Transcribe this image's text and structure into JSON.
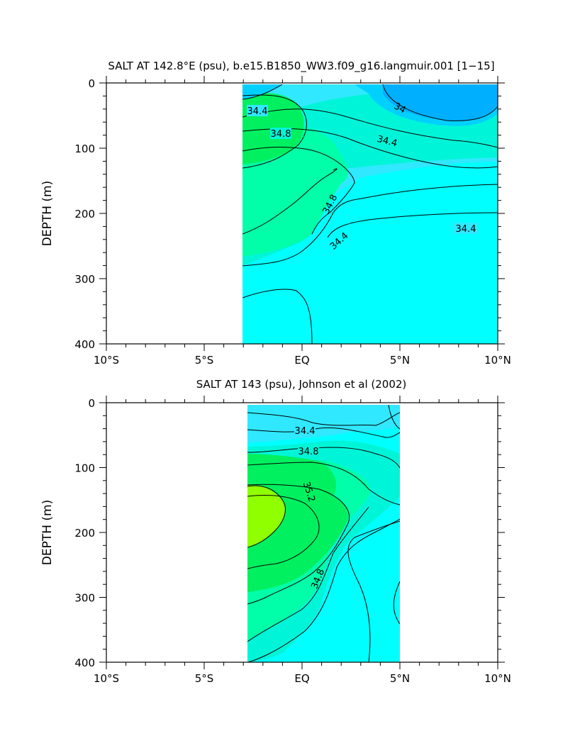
{
  "chart_data": [
    {
      "type": "heatmap",
      "title": "SALT AT 142.8°E (psu), b.e15.B1850_WW3.f09_g16.langmuir.001 [1−15]",
      "ylabel": "DEPTH (m)",
      "xlabel": "",
      "xlim": [
        -10,
        10
      ],
      "ylim": [
        400,
        0
      ],
      "x_ticks": [
        -10,
        -5,
        0,
        5,
        10
      ],
      "x_tick_labels": [
        "10°S",
        "5°S",
        "EQ",
        "5°N",
        "10°N"
      ],
      "y_ticks": [
        0,
        100,
        200,
        300,
        400
      ],
      "y_tick_labels": [
        "0",
        "100",
        "200",
        "300",
        "400"
      ],
      "data_extent_lat": [
        -3.3,
        10
      ],
      "data_extent_depth": [
        5,
        400
      ],
      "contour_levels": [
        34.0,
        34.2,
        34.4,
        34.6,
        34.8,
        35.0,
        35.2
      ],
      "contour_labels": [
        {
          "text": "34.4",
          "lat": -2.3,
          "depth": 43,
          "angle": 0
        },
        {
          "text": "34.8",
          "lat": -1.7,
          "depth": 76,
          "angle": 0
        },
        {
          "text": "34",
          "lat": 4.9,
          "depth": 40,
          "angle": 28
        },
        {
          "text": "34.4",
          "lat": 4.2,
          "depth": 92,
          "angle": 14
        },
        {
          "text": "34.8",
          "lat": 1.1,
          "depth": 192,
          "angle": -62
        },
        {
          "text": "34.4",
          "lat": 1.3,
          "depth": 260,
          "angle": -42
        },
        {
          "text": "34.4",
          "lat": 8.4,
          "depth": 222,
          "angle": 0
        }
      ],
      "fill_colors": [
        "#00b0ff",
        "#00d0ff",
        "#30e8ff",
        "#00ffff",
        "#00f5d8",
        "#00ffa8",
        "#00f060",
        "#90ff00"
      ]
    },
    {
      "type": "heatmap",
      "title": "SALT AT 143 (psu), Johnson et al (2002)",
      "ylabel": "DEPTH (m)",
      "xlabel": "",
      "xlim": [
        -10,
        10
      ],
      "ylim": [
        400,
        0
      ],
      "x_ticks": [
        -10,
        -5,
        0,
        5,
        10
      ],
      "x_tick_labels": [
        "10°S",
        "5°S",
        "EQ",
        "5°N",
        "10°N"
      ],
      "y_ticks": [
        0,
        100,
        200,
        300,
        400
      ],
      "y_tick_labels": [
        "0",
        "100",
        "200",
        "300",
        "400"
      ],
      "data_extent_lat": [
        -2.9,
        5
      ],
      "data_extent_depth": [
        5,
        400
      ],
      "contour_levels": [
        34.2,
        34.4,
        34.6,
        34.8,
        35.0,
        35.2,
        35.4
      ],
      "contour_labels": [
        {
          "text": "34.4",
          "lat": -0.9,
          "depth": 41,
          "angle": 0
        },
        {
          "text": "34.8",
          "lat": -0.5,
          "depth": 72,
          "angle": 0
        },
        {
          "text": "35.2",
          "lat": 0,
          "depth": 133,
          "angle": 72
        },
        {
          "text": "34.8",
          "lat": 0.8,
          "depth": 265,
          "angle": -68
        }
      ],
      "fill_colors": [
        "#30e8ff",
        "#00ffff",
        "#00f5d8",
        "#00ffa8",
        "#00f060",
        "#90ff00"
      ]
    }
  ]
}
